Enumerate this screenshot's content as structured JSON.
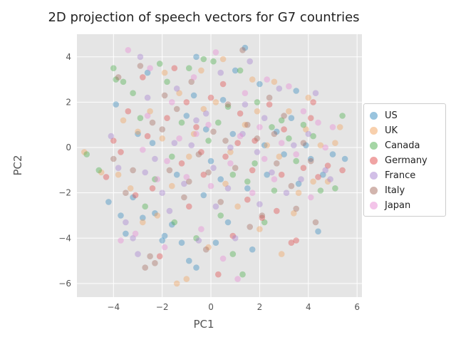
{
  "chart_data": {
    "type": "scatter",
    "title": "2D projection of speech vectors for G7 countries",
    "xlabel": "PC1",
    "ylabel": "PC2",
    "xlim": [
      -5.5,
      6.2
    ],
    "ylim": [
      -6.6,
      5.0
    ],
    "xticks": [
      -4,
      -2,
      0,
      2,
      4,
      6
    ],
    "yticks": [
      -6,
      -4,
      -2,
      0,
      2,
      4
    ],
    "xtick_labels": [
      "−4",
      "−2",
      "0",
      "2",
      "4",
      "6"
    ],
    "ytick_labels": [
      "−6",
      "−4",
      "−2",
      "0",
      "2",
      "4"
    ],
    "grid": true,
    "legend_position": "center-right",
    "point_alpha": 0.4,
    "series": [
      {
        "name": "US",
        "color": "#348abd",
        "points": [
          [
            -4.2,
            -2.4
          ],
          [
            -3.9,
            1.9
          ],
          [
            -3.7,
            -3.0
          ],
          [
            -3.5,
            -3.8
          ],
          [
            -3.2,
            -2.2
          ],
          [
            -2.8,
            -3.1
          ],
          [
            -2.6,
            3.3
          ],
          [
            -2.3,
            -2.9
          ],
          [
            -2.0,
            -4.1
          ],
          [
            -1.9,
            -3.9
          ],
          [
            -1.6,
            -3.4
          ],
          [
            -1.2,
            -4.2
          ],
          [
            -0.9,
            -5.0
          ],
          [
            -0.6,
            -5.3
          ],
          [
            -0.6,
            4.0
          ],
          [
            -0.3,
            -2.1
          ],
          [
            0.2,
            -4.2
          ],
          [
            0.4,
            -1.4
          ],
          [
            0.7,
            -3.3
          ],
          [
            1.0,
            3.4
          ],
          [
            1.4,
            4.4
          ],
          [
            1.7,
            -4.5
          ],
          [
            2.0,
            2.8
          ],
          [
            2.3,
            -1.2
          ],
          [
            2.7,
            0.7
          ],
          [
            3.0,
            -0.3
          ],
          [
            3.3,
            1.3
          ],
          [
            3.5,
            2.5
          ],
          [
            3.9,
            0.1
          ],
          [
            4.1,
            -0.5
          ],
          [
            4.4,
            -3.7
          ],
          [
            4.6,
            -1.2
          ],
          [
            5.0,
            -0.3
          ],
          [
            5.5,
            -0.5
          ],
          [
            -1.0,
            1.4
          ],
          [
            0.9,
            0.6
          ],
          [
            -2.4,
            0.2
          ],
          [
            1.5,
            -1.8
          ],
          [
            -0.2,
            0.8
          ],
          [
            0.5,
            2.1
          ],
          [
            -1.4,
            -1.2
          ],
          [
            2.2,
            0.1
          ],
          [
            -3.0,
            0.6
          ],
          [
            3.6,
            -1.6
          ],
          [
            0.0,
            -0.6
          ],
          [
            -0.7,
            2.3
          ]
        ]
      },
      {
        "name": "UK",
        "color": "#e24a33",
        "points": [],
        "legend_color": "#f2a25c"
      },
      {
        "name": "Canada",
        "color": "#2ca02c",
        "points": [
          [
            -5.1,
            -0.3
          ],
          [
            -4.6,
            -1.0
          ],
          [
            -4.0,
            3.5
          ],
          [
            -3.9,
            3.0
          ],
          [
            -3.6,
            2.9
          ],
          [
            -3.2,
            2.4
          ],
          [
            -2.9,
            1.3
          ],
          [
            -2.7,
            -2.6
          ],
          [
            -2.1,
            3.7
          ],
          [
            -1.8,
            2.9
          ],
          [
            -1.5,
            -3.3
          ],
          [
            -1.2,
            1.1
          ],
          [
            -0.9,
            3.5
          ],
          [
            -0.6,
            -4.0
          ],
          [
            -0.3,
            3.9
          ],
          [
            0.1,
            3.8
          ],
          [
            0.4,
            -3.0
          ],
          [
            0.7,
            1.8
          ],
          [
            0.9,
            -4.7
          ],
          [
            1.2,
            3.4
          ],
          [
            1.3,
            -5.6
          ],
          [
            1.5,
            -1.5
          ],
          [
            1.9,
            2.0
          ],
          [
            2.2,
            -3.3
          ],
          [
            2.5,
            0.9
          ],
          [
            2.9,
            1.2
          ],
          [
            3.2,
            0.4
          ],
          [
            3.5,
            -0.6
          ],
          [
            3.8,
            1.0
          ],
          [
            4.2,
            0.5
          ],
          [
            4.5,
            -1.9
          ],
          [
            5.1,
            -1.8
          ],
          [
            5.4,
            1.4
          ],
          [
            -0.1,
            0.3
          ],
          [
            0.9,
            -1.2
          ],
          [
            -1.6,
            -0.4
          ],
          [
            1.8,
            -0.7
          ],
          [
            -2.3,
            -1.4
          ],
          [
            0.3,
            1.1
          ],
          [
            2.6,
            -1.9
          ]
        ]
      },
      {
        "name": "Germany",
        "color": "#d62728",
        "points": [
          [
            -4.3,
            -1.3
          ],
          [
            -4.0,
            0.3
          ],
          [
            -3.7,
            -0.2
          ],
          [
            -3.4,
            1.6
          ],
          [
            -3.1,
            -2.1
          ],
          [
            -2.8,
            3.1
          ],
          [
            -2.4,
            -1.8
          ],
          [
            -2.1,
            -4.8
          ],
          [
            -1.8,
            1.3
          ],
          [
            -1.5,
            3.5
          ],
          [
            -1.2,
            -0.7
          ],
          [
            -0.9,
            -2.6
          ],
          [
            -0.6,
            0.9
          ],
          [
            -0.3,
            -1.2
          ],
          [
            0.0,
            2.2
          ],
          [
            0.3,
            -5.6
          ],
          [
            0.6,
            -0.4
          ],
          [
            0.9,
            -3.9
          ],
          [
            1.2,
            1.5
          ],
          [
            1.5,
            -2.3
          ],
          [
            1.8,
            0.3
          ],
          [
            2.1,
            -3.1
          ],
          [
            2.4,
            1.9
          ],
          [
            2.7,
            -2.8
          ],
          [
            3.0,
            0.8
          ],
          [
            3.3,
            -4.2
          ],
          [
            3.5,
            -4.1
          ],
          [
            3.8,
            -0.9
          ],
          [
            4.1,
            1.3
          ],
          [
            4.2,
            2.0
          ],
          [
            4.4,
            -1.3
          ],
          [
            4.8,
            -0.8
          ],
          [
            5.4,
            -1.0
          ],
          [
            -1.0,
            2.0
          ],
          [
            0.5,
            2.8
          ],
          [
            1.7,
            -1.0
          ],
          [
            -2.6,
            0.5
          ],
          [
            2.9,
            -1.2
          ],
          [
            -0.4,
            -0.2
          ],
          [
            1.1,
            0.2
          ]
        ]
      },
      {
        "name": "France",
        "color": "#988ed5",
        "points": [
          [
            -4.1,
            0.5
          ],
          [
            -3.8,
            -0.9
          ],
          [
            -3.5,
            -3.3
          ],
          [
            -3.2,
            -4.0
          ],
          [
            -3.0,
            -4.7
          ],
          [
            -2.9,
            4.0
          ],
          [
            -2.6,
            2.2
          ],
          [
            -2.3,
            -0.5
          ],
          [
            -2.0,
            -2.0
          ],
          [
            -1.7,
            -2.8
          ],
          [
            -1.4,
            2.6
          ],
          [
            -1.1,
            -1.6
          ],
          [
            -0.8,
            0.1
          ],
          [
            -0.5,
            -4.1
          ],
          [
            -0.2,
            1.5
          ],
          [
            0.1,
            -0.9
          ],
          [
            0.4,
            3.3
          ],
          [
            0.7,
            -1.8
          ],
          [
            1.0,
            -4.0
          ],
          [
            1.3,
            0.6
          ],
          [
            1.6,
            3.8
          ],
          [
            1.9,
            -0.2
          ],
          [
            2.2,
            1.3
          ],
          [
            2.5,
            -1.1
          ],
          [
            2.8,
            2.6
          ],
          [
            3.1,
            -2.0
          ],
          [
            3.4,
            0.1
          ],
          [
            3.7,
            -1.4
          ],
          [
            4.0,
            0.6
          ],
          [
            4.3,
            2.4
          ],
          [
            4.7,
            -1.0
          ],
          [
            4.9,
            -1.4
          ],
          [
            -1.5,
            0.2
          ],
          [
            0.2,
            -2.6
          ],
          [
            1.4,
            1.9
          ],
          [
            -0.6,
            1.2
          ],
          [
            2.0,
            -2.5
          ],
          [
            -2.7,
            -1.1
          ],
          [
            0.8,
            0.0
          ]
        ]
      },
      {
        "name": "Italy",
        "color": "#8c564b",
        "points": [
          [
            -4.0,
            -0.5
          ],
          [
            -3.8,
            3.1
          ],
          [
            -3.5,
            -2.0
          ],
          [
            -3.2,
            -1.0
          ],
          [
            -2.9,
            3.6
          ],
          [
            -2.7,
            -5.3
          ],
          [
            -2.5,
            -4.8
          ],
          [
            -2.3,
            -5.1
          ],
          [
            -2.0,
            0.8
          ],
          [
            -1.7,
            -1.0
          ],
          [
            -1.4,
            1.7
          ],
          [
            -1.1,
            -2.2
          ],
          [
            -0.8,
            2.9
          ],
          [
            -0.5,
            -0.3
          ],
          [
            -0.2,
            -4.5
          ],
          [
            0.1,
            0.7
          ],
          [
            0.4,
            -2.4
          ],
          [
            0.7,
            1.9
          ],
          [
            1.0,
            -0.9
          ],
          [
            1.3,
            4.3
          ],
          [
            1.6,
            -3.5
          ],
          [
            1.9,
            0.4
          ],
          [
            2.1,
            -3.0
          ],
          [
            2.4,
            2.2
          ],
          [
            2.7,
            -0.7
          ],
          [
            3.0,
            1.4
          ],
          [
            3.3,
            -1.7
          ],
          [
            3.5,
            -2.7
          ],
          [
            3.8,
            0.2
          ],
          [
            4.1,
            -0.6
          ],
          [
            4.3,
            -3.3
          ],
          [
            -0.9,
            -1.5
          ],
          [
            0.6,
            0.3
          ],
          [
            -1.9,
            2.3
          ],
          [
            1.5,
            1.0
          ],
          [
            -0.1,
            -1.1
          ],
          [
            2.6,
            0.6
          ],
          [
            -2.4,
            1.1
          ]
        ]
      },
      {
        "name": "Japan",
        "color": "#e377c2",
        "points": [
          [
            -3.7,
            -4.1
          ],
          [
            -3.4,
            4.3
          ],
          [
            -3.1,
            -3.8
          ],
          [
            -2.8,
            -0.1
          ],
          [
            -2.5,
            3.5
          ],
          [
            -2.2,
            -1.4
          ],
          [
            -1.9,
            -4.4
          ],
          [
            -1.6,
            2.0
          ],
          [
            -1.3,
            0.4
          ],
          [
            -1.0,
            -1.3
          ],
          [
            -0.7,
            3.1
          ],
          [
            -0.4,
            -3.6
          ],
          [
            -0.1,
            1.0
          ],
          [
            0.2,
            4.2
          ],
          [
            0.5,
            -4.9
          ],
          [
            0.8,
            -0.7
          ],
          [
            1.1,
            -5.8
          ],
          [
            1.4,
            2.4
          ],
          [
            1.7,
            -2.0
          ],
          [
            2.0,
            0.9
          ],
          [
            2.3,
            3.0
          ],
          [
            2.6,
            -1.4
          ],
          [
            2.9,
            0.2
          ],
          [
            3.2,
            2.7
          ],
          [
            3.5,
            -0.3
          ],
          [
            3.8,
            1.6
          ],
          [
            4.1,
            -2.2
          ],
          [
            4.4,
            1.1
          ],
          [
            4.7,
            0.0
          ],
          [
            5.0,
            0.9
          ],
          [
            -1.8,
            -0.6
          ],
          [
            0.0,
            -1.7
          ],
          [
            1.2,
            0.5
          ],
          [
            -0.6,
            0.6
          ],
          [
            2.2,
            -0.5
          ],
          [
            -2.6,
            1.4
          ]
        ]
      }
    ],
    "uk_points": [
      [
        -5.2,
        -0.2
      ],
      [
        -4.5,
        -1.1
      ],
      [
        -3.8,
        -1.2
      ],
      [
        -3.6,
        1.2
      ],
      [
        -3.3,
        -1.8
      ],
      [
        -3.0,
        0.7
      ],
      [
        -2.8,
        -3.3
      ],
      [
        -2.5,
        1.6
      ],
      [
        -2.2,
        -3.0
      ],
      [
        -1.9,
        3.3
      ],
      [
        -1.6,
        -1.7
      ],
      [
        -1.4,
        -6.0
      ],
      [
        -1.3,
        2.4
      ],
      [
        -1.0,
        -5.8
      ],
      [
        -0.7,
        0.6
      ],
      [
        -0.4,
        3.4
      ],
      [
        -0.1,
        -4.4
      ],
      [
        0.2,
        2.0
      ],
      [
        0.5,
        3.9
      ],
      [
        0.8,
        -0.2
      ],
      [
        1.1,
        -2.6
      ],
      [
        1.4,
        1.0
      ],
      [
        1.7,
        3.0
      ],
      [
        2.0,
        -3.6
      ],
      [
        2.3,
        0.1
      ],
      [
        2.6,
        2.9
      ],
      [
        2.9,
        -4.7
      ],
      [
        3.2,
        1.6
      ],
      [
        3.4,
        -2.9
      ],
      [
        3.6,
        -2.0
      ],
      [
        3.9,
        0.8
      ],
      [
        4.0,
        2.2
      ],
      [
        4.2,
        -1.5
      ],
      [
        4.5,
        0.1
      ],
      [
        4.8,
        -1.5
      ],
      [
        5.1,
        0.2
      ],
      [
        5.3,
        0.9
      ],
      [
        -0.9,
        -0.4
      ],
      [
        0.6,
        -1.6
      ],
      [
        1.9,
        1.6
      ],
      [
        -2.0,
        0.4
      ],
      [
        2.8,
        -0.4
      ],
      [
        -0.3,
        1.7
      ]
    ],
    "legend_colors": [
      "#348abd",
      "#f2a25c",
      "#4cae4c",
      "#e24a4a",
      "#a57fd0",
      "#a56b5e",
      "#e88ad4"
    ]
  }
}
